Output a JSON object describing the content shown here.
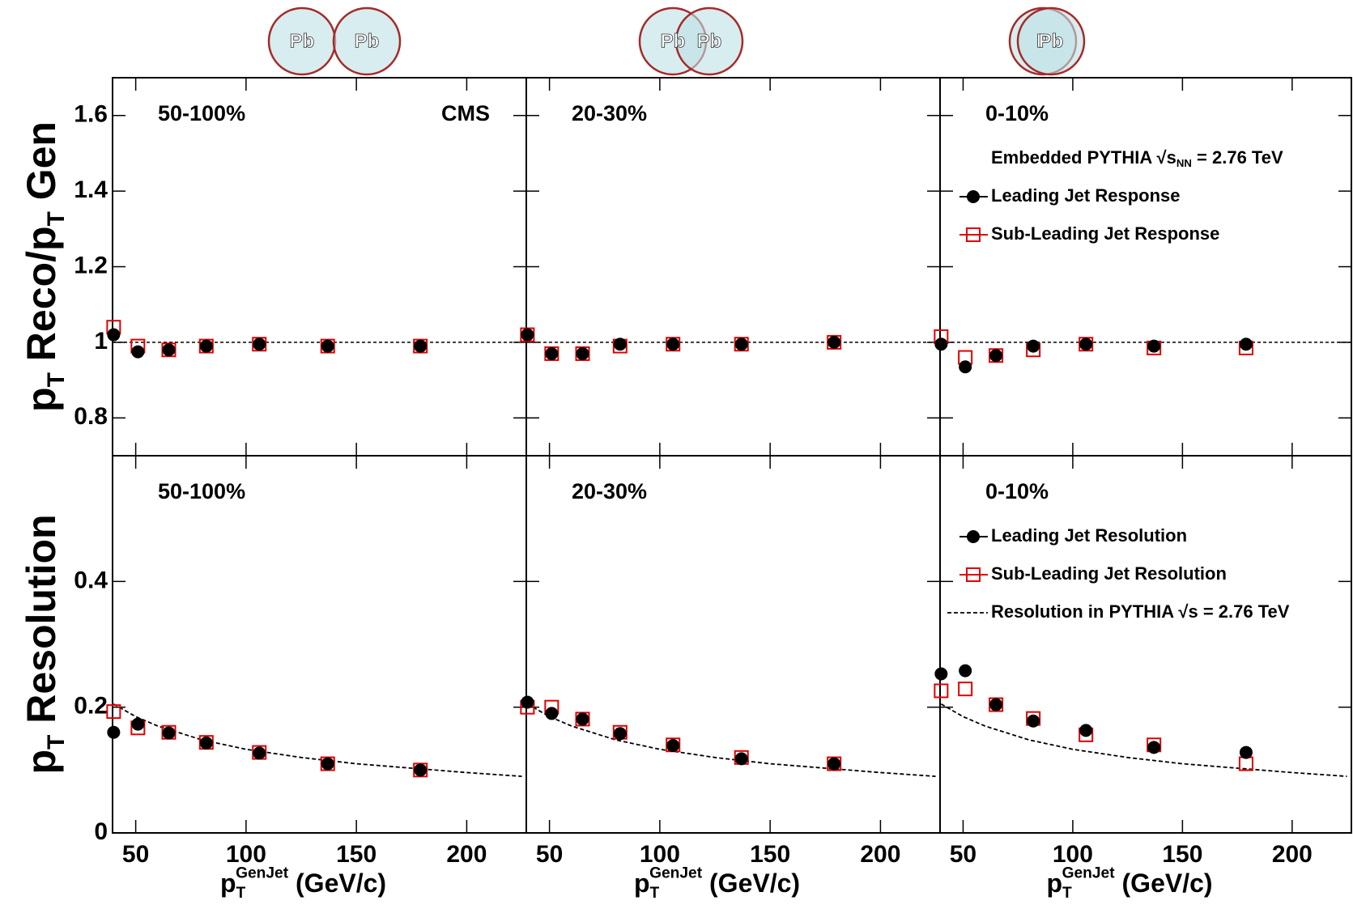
{
  "chart_data": [
    {
      "type": "scatter",
      "title": "50-100%",
      "annotation": "CMS",
      "icon_labels": [
        "Pb",
        "Pb"
      ],
      "ylabel": [
        {
          "t": "p"
        },
        {
          "sub": "T"
        },
        {
          "t": " Reco/p"
        },
        {
          "sub": "T"
        },
        {
          "t": " Gen"
        }
      ],
      "xlim": [
        39.5,
        227
      ],
      "xticks": [
        50,
        100,
        150,
        200
      ],
      "ylim": [
        0.7,
        1.7
      ],
      "yticks": [
        0.8,
        1,
        1.2,
        1.4,
        1.6
      ],
      "hline": 1,
      "x": [
        40,
        51,
        65,
        82,
        106,
        137,
        179
      ],
      "series": [
        {
          "color": "#000000",
          "marker": "circle",
          "values": [
            1.02,
            0.975,
            0.98,
            0.99,
            0.995,
            0.99,
            0.99
          ]
        },
        {
          "color": "#e00000",
          "marker": "open-square",
          "values": [
            1.04,
            0.99,
            0.98,
            0.99,
            0.995,
            0.99,
            0.99
          ]
        }
      ]
    },
    {
      "type": "scatter",
      "title": "20-30%",
      "icon_labels": [
        "Pb",
        "Pb"
      ],
      "xlim": [
        39.5,
        227
      ],
      "xticks": [
        50,
        100,
        150,
        200
      ],
      "ylim": [
        0.7,
        1.7
      ],
      "yticks": [
        0.8,
        1,
        1.2,
        1.4,
        1.6
      ],
      "hline": 1,
      "x": [
        40,
        51,
        65,
        82,
        106,
        137,
        179
      ],
      "series": [
        {
          "color": "#000000",
          "marker": "circle",
          "values": [
            1.02,
            0.97,
            0.97,
            0.995,
            0.995,
            0.995,
            1.0
          ]
        },
        {
          "color": "#e00000",
          "marker": "open-square",
          "values": [
            1.02,
            0.97,
            0.97,
            0.99,
            0.995,
            0.995,
            1.0
          ]
        }
      ]
    },
    {
      "type": "scatter",
      "title": "0-10%",
      "icon_labels": [
        "P",
        "Pb"
      ],
      "legend_header": [
        {
          "t": "Embedded PYTHIA √s"
        },
        {
          "sub": "NN"
        },
        {
          "t": " = 2.76 TeV"
        }
      ],
      "xlim": [
        39.5,
        227
      ],
      "xticks": [
        50,
        100,
        150,
        200
      ],
      "ylim": [
        0.7,
        1.7
      ],
      "yticks": [
        0.8,
        1,
        1.2,
        1.4,
        1.6
      ],
      "hline": 1,
      "x": [
        40,
        51,
        65,
        82,
        106,
        137,
        179
      ],
      "series": [
        {
          "name": "Leading Jet Response",
          "color": "#000000",
          "marker": "circle",
          "values": [
            0.995,
            0.935,
            0.965,
            0.99,
            0.995,
            0.99,
            0.995
          ]
        },
        {
          "name": "Sub-Leading Jet Response",
          "color": "#e00000",
          "marker": "open-square",
          "values": [
            1.015,
            0.96,
            0.965,
            0.98,
            0.995,
            0.985,
            0.985
          ]
        }
      ]
    },
    {
      "type": "scatter",
      "title": "50-100%",
      "ylabel": [
        {
          "t": "p"
        },
        {
          "sub": "T"
        },
        {
          "t": " Resolution"
        }
      ],
      "xlabel": [
        {
          "t": "p"
        },
        {
          "sub": "T"
        },
        {
          "sup": "GenJet"
        },
        {
          "t": " (GeV/c)"
        }
      ],
      "xlim": [
        39.5,
        227
      ],
      "xticks": [
        50,
        100,
        150,
        200
      ],
      "ylim": [
        0,
        0.6
      ],
      "yticks": [
        0,
        0.2,
        0.4
      ],
      "x": [
        40,
        51,
        65,
        82,
        106,
        137,
        179
      ],
      "series": [
        {
          "color": "#000000",
          "marker": "circle",
          "values": [
            0.16,
            0.173,
            0.159,
            0.143,
            0.127,
            0.11,
            0.1
          ]
        },
        {
          "color": "#e00000",
          "marker": "open-square",
          "values": [
            0.193,
            0.167,
            0.16,
            0.144,
            0.128,
            0.11,
            0.1
          ]
        },
        {
          "color": "#000000",
          "line_style": "dashed",
          "x": [
            40,
            50,
            60,
            80,
            100,
            125,
            150,
            175,
            200,
            225
          ],
          "values": [
            0.205,
            0.185,
            0.17,
            0.148,
            0.133,
            0.12,
            0.11,
            0.103,
            0.096,
            0.09
          ]
        }
      ]
    },
    {
      "type": "scatter",
      "title": "20-30%",
      "xlabel": [
        {
          "t": "p"
        },
        {
          "sub": "T"
        },
        {
          "sup": "GenJet"
        },
        {
          "t": " (GeV/c)"
        }
      ],
      "xlim": [
        39.5,
        227
      ],
      "xticks": [
        50,
        100,
        150,
        200
      ],
      "ylim": [
        0,
        0.6
      ],
      "yticks": [
        0,
        0.2,
        0.4
      ],
      "x": [
        40,
        51,
        65,
        82,
        106,
        137,
        179
      ],
      "series": [
        {
          "color": "#000000",
          "marker": "circle",
          "values": [
            0.208,
            0.19,
            0.181,
            0.158,
            0.139,
            0.118,
            0.11
          ]
        },
        {
          "color": "#e00000",
          "marker": "open-square",
          "values": [
            0.2,
            0.2,
            0.181,
            0.16,
            0.14,
            0.12,
            0.11
          ]
        },
        {
          "color": "#000000",
          "line_style": "dashed",
          "x": [
            40,
            50,
            60,
            80,
            100,
            125,
            150,
            175,
            200,
            225
          ],
          "values": [
            0.205,
            0.185,
            0.17,
            0.148,
            0.133,
            0.12,
            0.11,
            0.103,
            0.096,
            0.09
          ]
        }
      ]
    },
    {
      "type": "scatter",
      "title": "0-10%",
      "xlabel": [
        {
          "t": "p"
        },
        {
          "sub": "T"
        },
        {
          "sup": "GenJet"
        },
        {
          "t": " (GeV/c)"
        }
      ],
      "xlim": [
        39.5,
        227
      ],
      "xticks": [
        50,
        100,
        150,
        200
      ],
      "ylim": [
        0,
        0.6
      ],
      "yticks": [
        0,
        0.2,
        0.4
      ],
      "x": [
        40,
        51,
        65,
        82,
        106,
        137,
        179
      ],
      "series": [
        {
          "name": "Leading Jet Resolution",
          "color": "#000000",
          "marker": "circle",
          "values": [
            0.253,
            0.258,
            0.204,
            0.178,
            0.163,
            0.136,
            0.128
          ]
        },
        {
          "name": "Sub-Leading Jet Resolution",
          "color": "#e00000",
          "marker": "open-square",
          "values": [
            0.226,
            0.229,
            0.204,
            0.182,
            0.156,
            0.14,
            0.11
          ]
        },
        {
          "name": "Resolution in PYTHIA √s = 2.76 TeV",
          "color": "#000000",
          "line_style": "dashed",
          "x": [
            40,
            50,
            60,
            80,
            100,
            125,
            150,
            175,
            200,
            225
          ],
          "values": [
            0.205,
            0.185,
            0.17,
            0.148,
            0.133,
            0.12,
            0.11,
            0.103,
            0.096,
            0.09
          ]
        }
      ]
    }
  ]
}
